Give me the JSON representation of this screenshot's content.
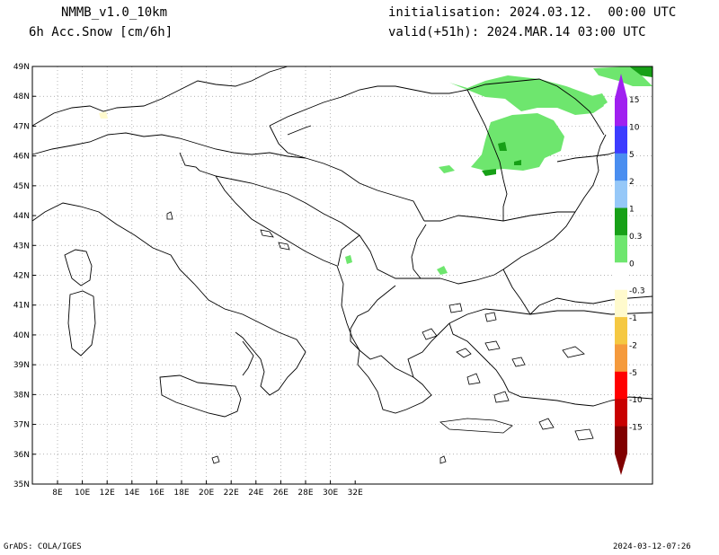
{
  "header": {
    "model": "NMMB_v1.0_10km",
    "variable": "6h Acc.Snow [cm/6h]",
    "init": "initialisation: 2024.03.12.  00:00 UTC",
    "valid": "valid(+51h): 2024.MAR.14 03:00 UTC"
  },
  "axes": {
    "lat_labels": [
      "49N",
      "48N",
      "47N",
      "46N",
      "45N",
      "44N",
      "43N",
      "42N",
      "41N",
      "40N",
      "39N",
      "38N",
      "37N",
      "36N",
      "35N"
    ],
    "lon_labels": [
      "8E",
      "10E",
      "12E",
      "14E",
      "16E",
      "18E",
      "20E",
      "22E",
      "24E",
      "26E",
      "28E",
      "30E",
      "32E"
    ]
  },
  "colorbar": {
    "labels": [
      "15",
      "10",
      "5",
      "2",
      "1",
      "0.3",
      "0",
      "-0.3",
      "-1",
      "-2",
      "-5",
      "-10",
      "-15"
    ],
    "colors": [
      "#a020f0",
      "#3c3cff",
      "#4a8ef0",
      "#96c8f8",
      "#17a017",
      "#6ee66e",
      "#ffffff",
      "#fffacd",
      "#f5c842",
      "#f59a3c",
      "#ff0000",
      "#c80000",
      "#800000"
    ]
  },
  "footer": {
    "left": "GrADS: COLA/IGES",
    "right": "2024-03-12-07:26"
  }
}
